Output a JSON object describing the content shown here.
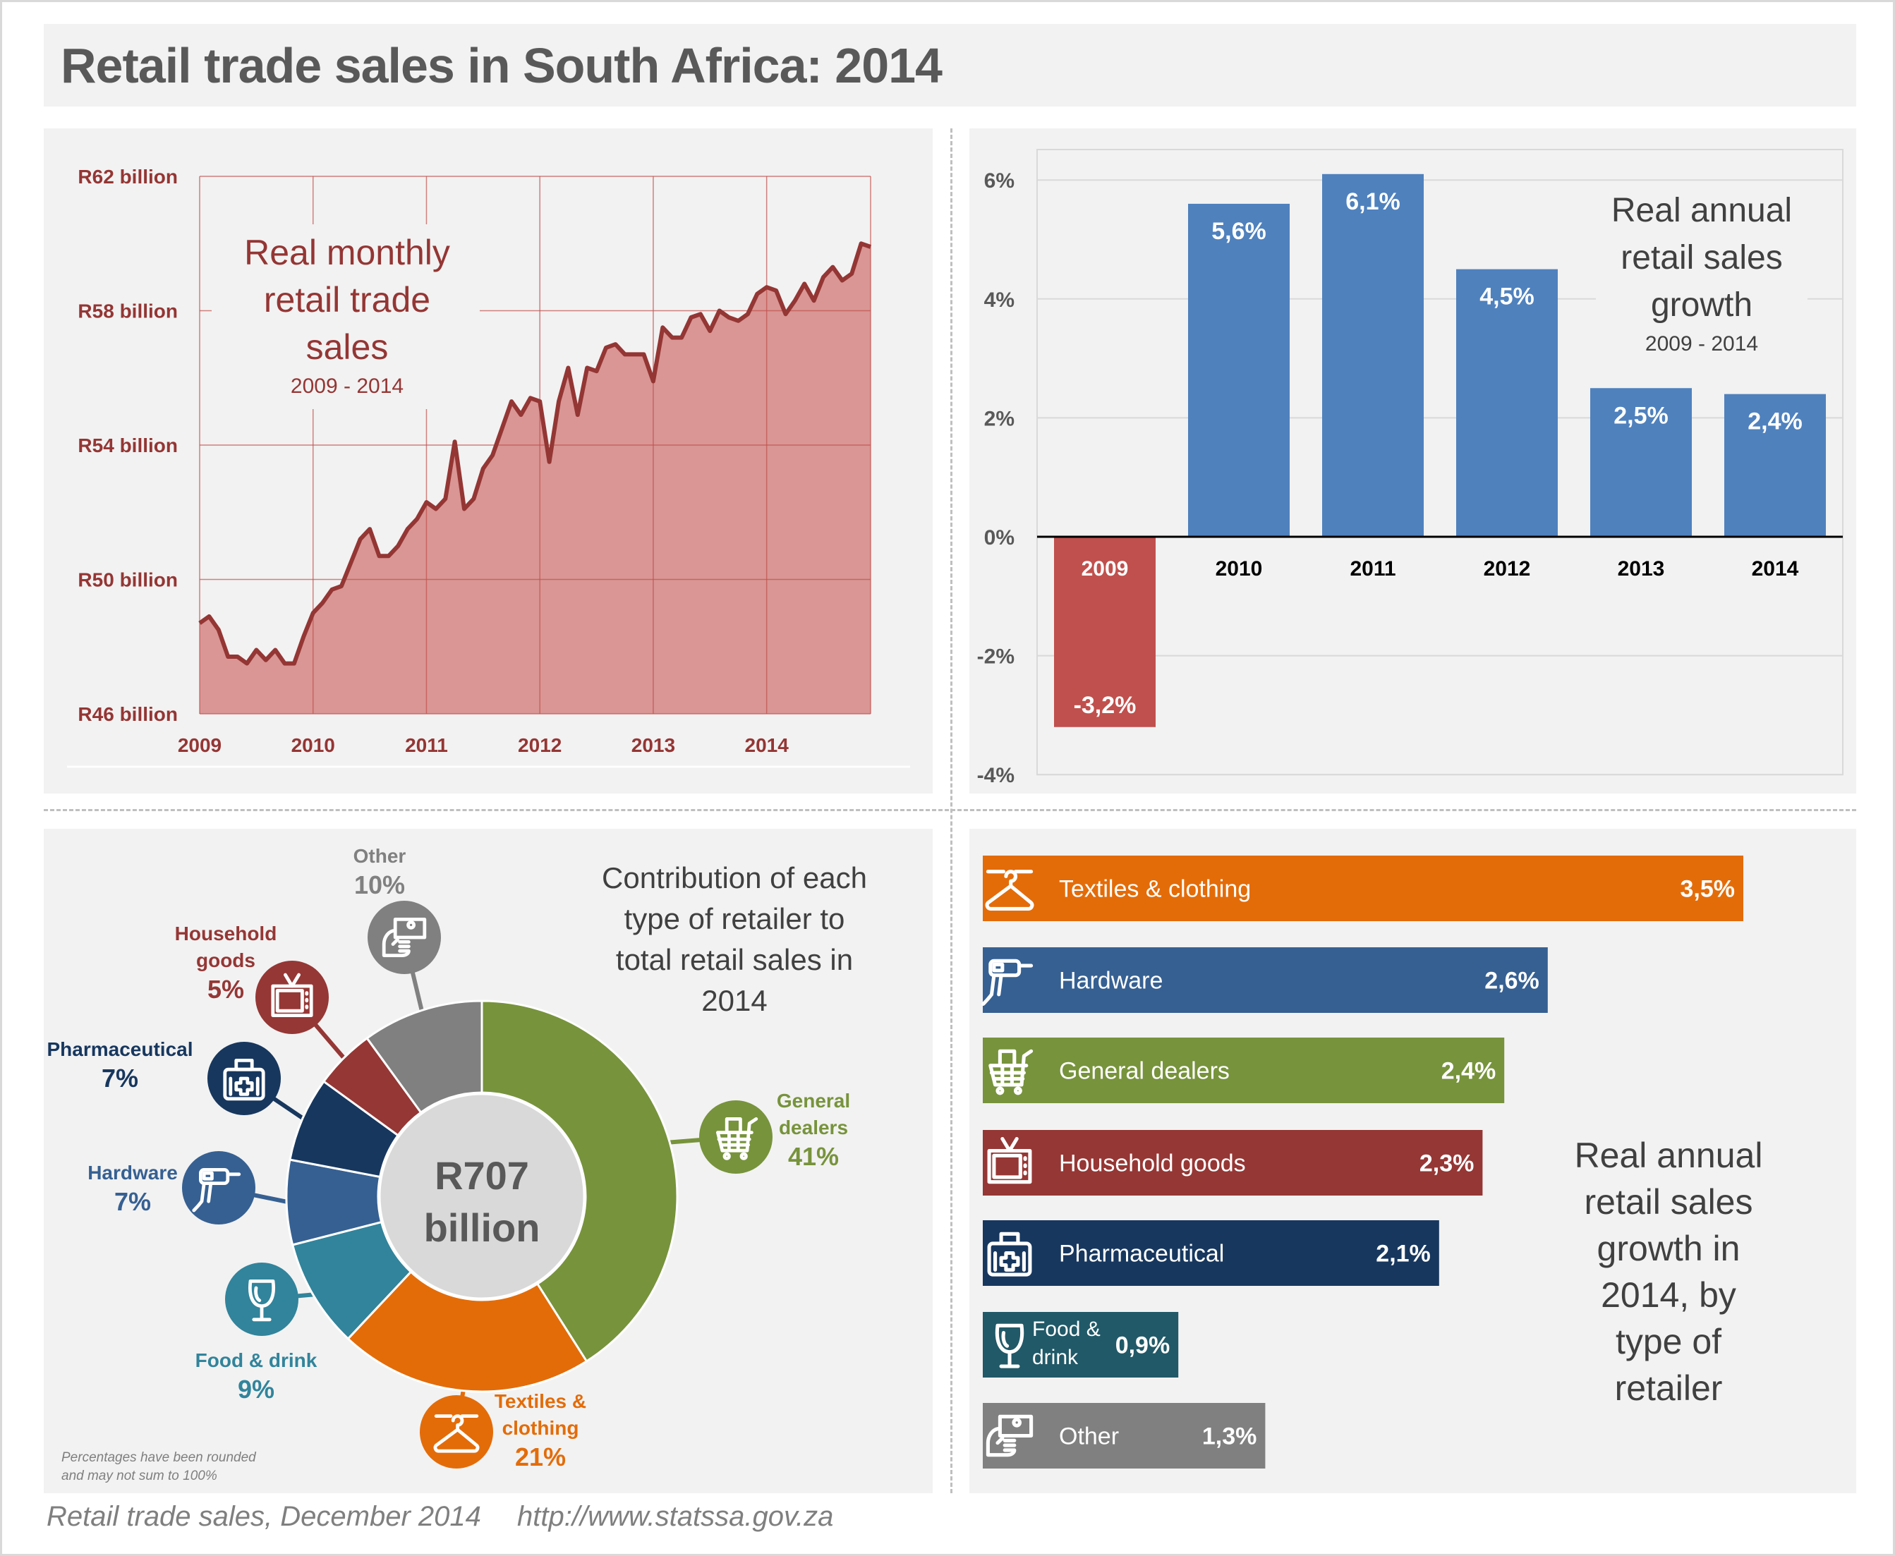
{
  "page": {
    "title": "Retail trade sales in South Africa: 2014",
    "footer_source": "Retail trade sales, December 2014",
    "footer_url": "http://www.statssa.gov.za"
  },
  "colors": {
    "line_stroke": "#943634",
    "line_fill": "#d99694",
    "line_axis_text": "#943634",
    "bar_positive": "#4f81bd",
    "bar_negative": "#c0504d",
    "general_dealers": "#77933c",
    "textiles": "#e36c09",
    "food": "#31849b",
    "hardware": "#366092",
    "pharmaceutical": "#17375e",
    "household": "#953735",
    "other": "#808080",
    "food_hbar": "#215968"
  },
  "chart_data": [
    {
      "id": "monthly_sales",
      "type": "area",
      "title": "Real monthly retail trade sales",
      "subtitle": "2009 - 2014",
      "xlabel": "",
      "ylabel": "",
      "ylim": [
        46,
        62
      ],
      "y_unit": "R billion",
      "y_ticks": [
        46,
        50,
        54,
        58,
        62
      ],
      "y_tick_labels": [
        "R46 billion",
        "R50 billion",
        "R54 billion",
        "R58 billion",
        "R62 billion"
      ],
      "x_tick_labels": [
        "2009",
        "2010",
        "2011",
        "2012",
        "2013",
        "2014"
      ],
      "x_start": "2009-01",
      "x_frequency": "monthly",
      "grid": true,
      "values": [
        48.7,
        48.9,
        48.5,
        47.7,
        47.7,
        47.5,
        47.9,
        47.6,
        47.9,
        47.5,
        47.5,
        48.3,
        49.0,
        49.3,
        49.7,
        49.8,
        50.5,
        51.2,
        51.5,
        50.7,
        50.7,
        51.0,
        51.5,
        51.8,
        52.3,
        52.1,
        52.4,
        54.1,
        52.1,
        52.4,
        53.3,
        53.7,
        54.5,
        55.3,
        54.9,
        55.4,
        55.3,
        53.5,
        55.3,
        56.3,
        54.9,
        56.3,
        56.2,
        56.9,
        57.0,
        56.7,
        56.7,
        56.7,
        55.9,
        57.5,
        57.2,
        57.2,
        57.8,
        57.9,
        57.4,
        58.0,
        57.8,
        57.7,
        57.9,
        58.5,
        58.7,
        58.6,
        57.9,
        58.3,
        58.8,
        58.3,
        59.0,
        59.3,
        58.9,
        59.1,
        60.0,
        59.9
      ]
    },
    {
      "id": "annual_growth",
      "type": "bar",
      "title": "Real annual retail sales growth",
      "subtitle": "2009 - 2014",
      "categories": [
        "2009",
        "2010",
        "2011",
        "2012",
        "2013",
        "2014"
      ],
      "values": [
        -3.2,
        5.6,
        6.1,
        4.5,
        2.5,
        2.4
      ],
      "data_labels": [
        "-3,2%",
        "5,6%",
        "6,1%",
        "4,5%",
        "2,5%",
        "2,4%"
      ],
      "ylim": [
        -4,
        6.5
      ],
      "y_ticks": [
        -4,
        -2,
        0,
        2,
        4,
        6
      ],
      "y_tick_labels": [
        "-4%",
        "-2%",
        "0%",
        "2%",
        "4%",
        "6%"
      ],
      "xlabel": "",
      "ylabel": "",
      "grid": true,
      "legend": "none"
    },
    {
      "id": "contribution",
      "type": "pie",
      "donut": true,
      "title": "Contribution of each type of retailer to total retail sales in 2014",
      "center_label": [
        "R707",
        "billion"
      ],
      "note": [
        "Percentages have been rounded",
        "and may not sum to 100%"
      ],
      "slices": [
        {
          "name": "General dealers",
          "label_lines": [
            "General",
            "dealers"
          ],
          "value": 41,
          "label": "41%",
          "color_key": "general_dealers",
          "icon": "shopping-cart-icon"
        },
        {
          "name": "Textiles & clothing",
          "label_lines": [
            "Textiles &",
            "clothing"
          ],
          "value": 21,
          "label": "21%",
          "color_key": "textiles",
          "icon": "hanger-icon"
        },
        {
          "name": "Food & drink",
          "label_lines": [
            "Food & drink"
          ],
          "value": 9,
          "label": "9%",
          "color_key": "food",
          "icon": "wine-glass-icon"
        },
        {
          "name": "Hardware",
          "label_lines": [
            "Hardware"
          ],
          "value": 7,
          "label": "7%",
          "color_key": "hardware",
          "icon": "drill-icon"
        },
        {
          "name": "Pharmaceutical",
          "label_lines": [
            "Pharmaceutical"
          ],
          "value": 7,
          "label": "7%",
          "color_key": "pharmaceutical",
          "icon": "medical-kit-icon"
        },
        {
          "name": "Household goods",
          "label_lines": [
            "Household",
            "goods"
          ],
          "value": 5,
          "label": "5%",
          "color_key": "household",
          "icon": "tv-icon"
        },
        {
          "name": "Other",
          "label_lines": [
            "Other"
          ],
          "value": 10,
          "label": "10%",
          "color_key": "other",
          "icon": "money-hand-icon"
        }
      ]
    },
    {
      "id": "growth_by_type",
      "type": "bar",
      "orientation": "horizontal",
      "title": "Real annual retail sales growth in 2014, by type of retailer",
      "title_lines": [
        "Real annual",
        "retail sales",
        "growth in",
        "2014, by",
        "type of",
        "retailer"
      ],
      "categories": [
        "Textiles & clothing",
        "Hardware",
        "General dealers",
        "Household goods",
        "Pharmaceutical",
        "Food & drink",
        "Other"
      ],
      "category_lines": [
        [
          "Textiles & clothing"
        ],
        [
          "Hardware"
        ],
        [
          "General dealers"
        ],
        [
          "Household goods"
        ],
        [
          "Pharmaceutical"
        ],
        [
          "Food &",
          "drink"
        ],
        [
          "Other"
        ]
      ],
      "values": [
        3.5,
        2.6,
        2.4,
        2.3,
        2.1,
        0.9,
        1.3
      ],
      "data_labels": [
        "3,5%",
        "2,6%",
        "2,4%",
        "2,3%",
        "2,1%",
        "0,9%",
        "1,3%"
      ],
      "color_keys": [
        "textiles",
        "hardware",
        "general_dealers",
        "household",
        "pharmaceutical",
        "food_hbar",
        "other"
      ],
      "icons": [
        "hanger-icon",
        "drill-icon",
        "shopping-cart-icon",
        "tv-icon",
        "medical-kit-icon",
        "wine-glass-icon",
        "money-hand-icon"
      ],
      "xlabel": "",
      "ylabel": "",
      "grid": false
    }
  ]
}
